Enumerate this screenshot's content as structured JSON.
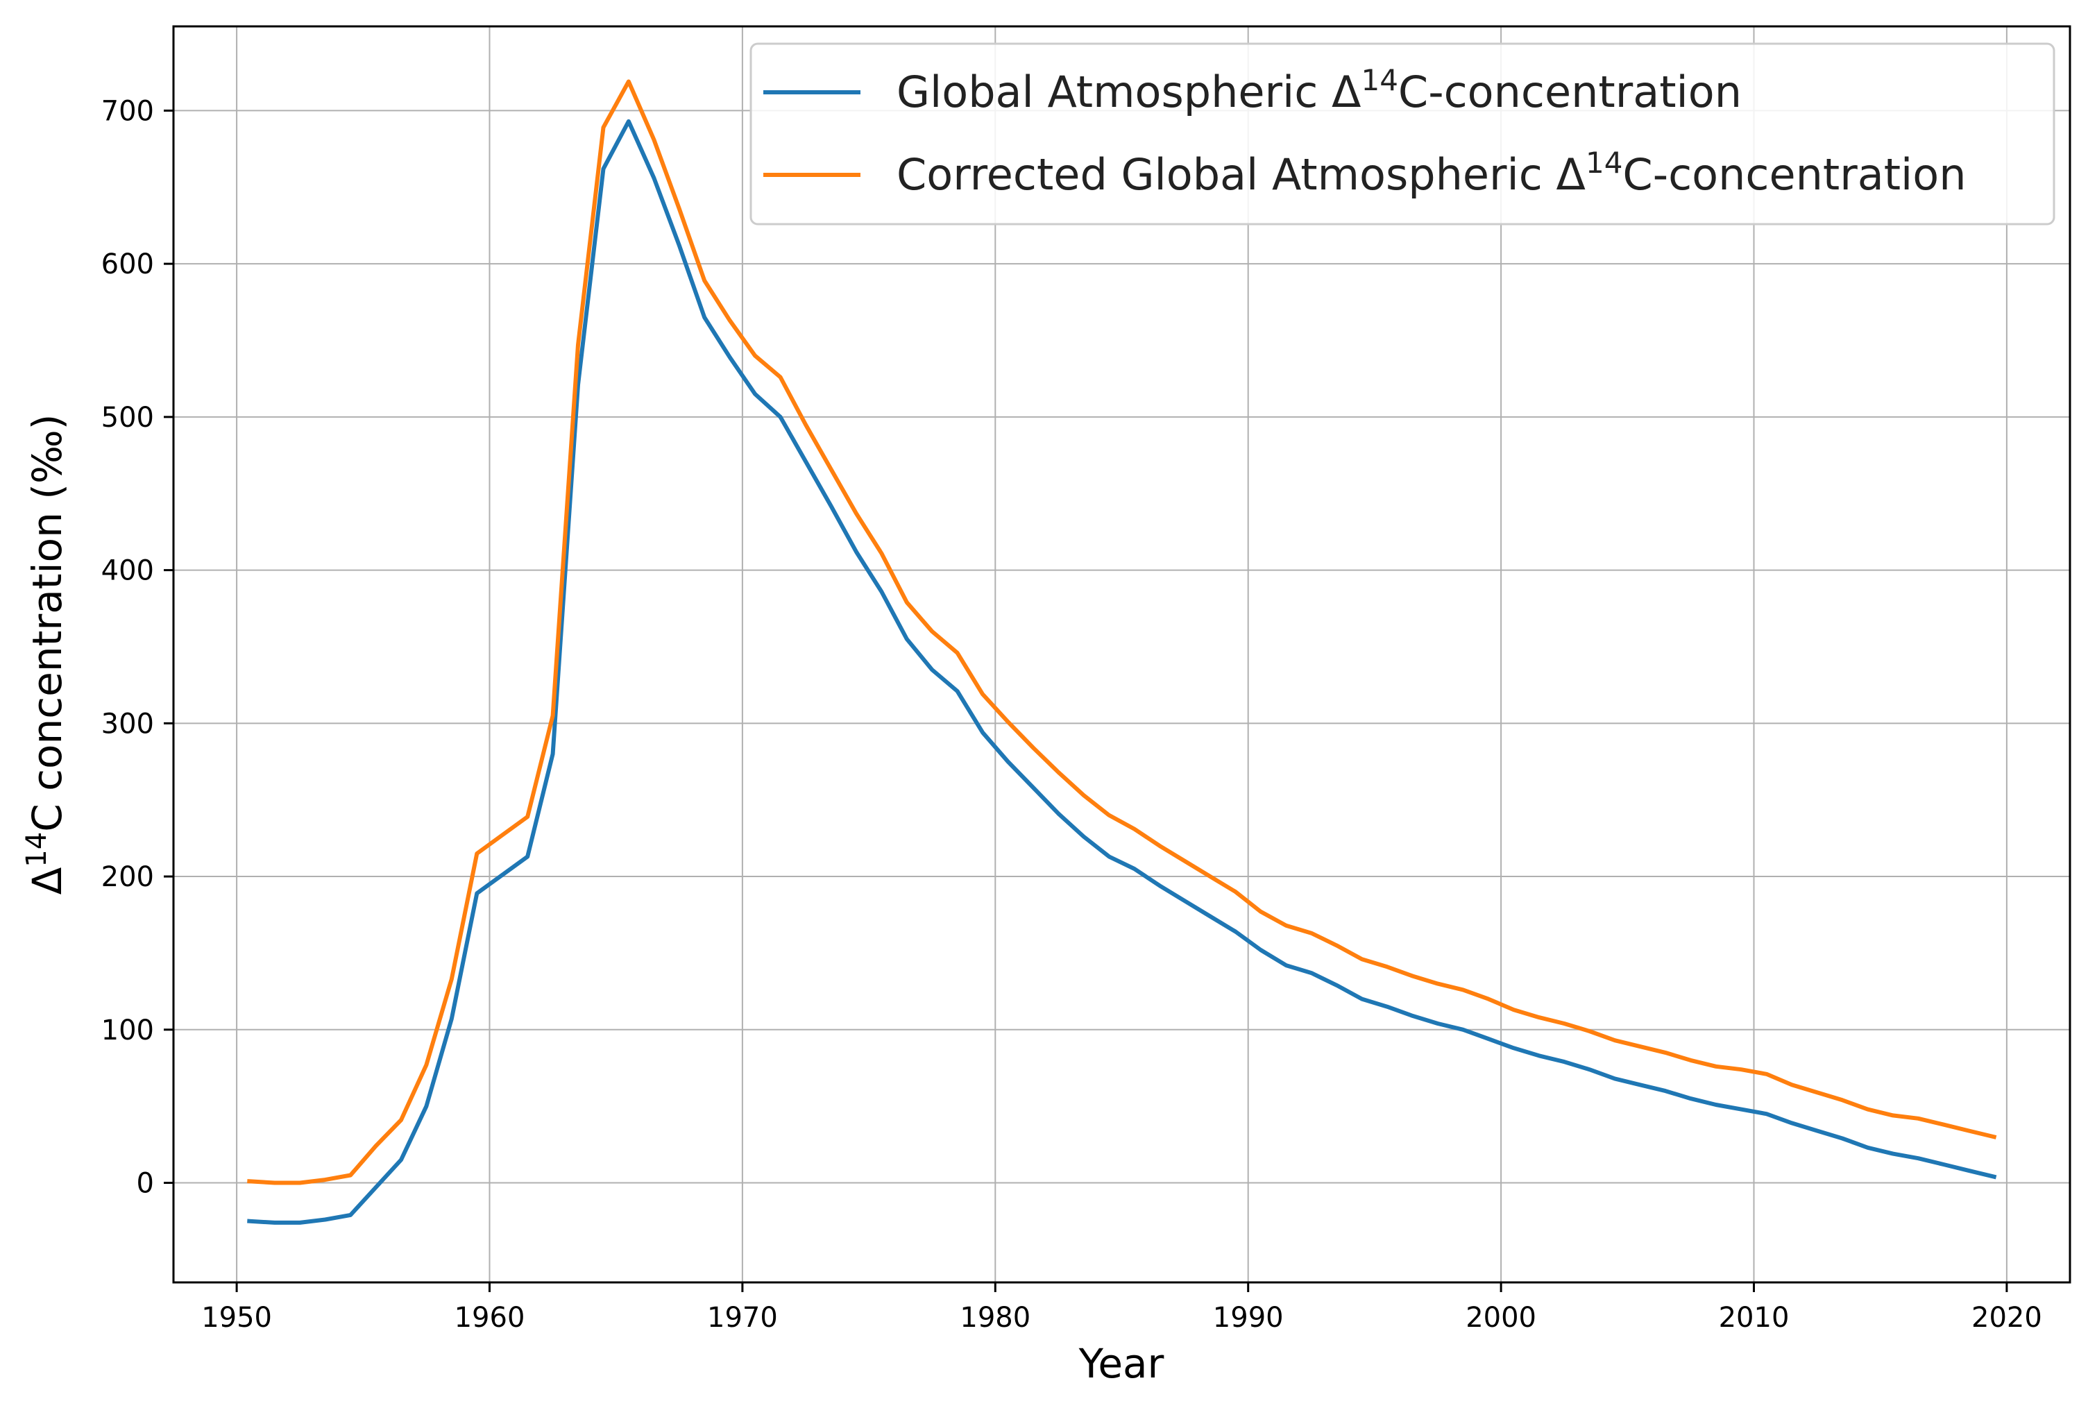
{
  "chart_data": {
    "type": "line",
    "title": "",
    "xlabel": "Year",
    "ylabel": {
      "prefix": "Δ",
      "sup": "14",
      "suffix": "C concentration (‰)"
    },
    "xlim": [
      1947.5,
      2022.5
    ],
    "ylim": [
      -65,
      755
    ],
    "xticks": [
      1950,
      1960,
      1970,
      1980,
      1990,
      2000,
      2010,
      2020
    ],
    "yticks": [
      0,
      100,
      200,
      300,
      400,
      500,
      600,
      700
    ],
    "grid": true,
    "legend": {
      "position": "top-right",
      "entries": [
        {
          "prefix": "Global Atmospheric Δ",
          "sup": "14",
          "suffix": "C-concentration",
          "color": "#1f77b4"
        },
        {
          "prefix": "Corrected Global Atmospheric Δ",
          "sup": "14",
          "suffix": "C-concentration",
          "color": "#ff7f0e"
        }
      ]
    },
    "x": [
      1950.5,
      1951.5,
      1952.5,
      1953.5,
      1954.5,
      1955.5,
      1956.5,
      1957.5,
      1958.5,
      1959.5,
      1960.5,
      1961.5,
      1962.5,
      1963.5,
      1964.5,
      1965.5,
      1966.5,
      1967.5,
      1968.5,
      1969.5,
      1970.5,
      1971.5,
      1972.5,
      1973.5,
      1974.5,
      1975.5,
      1976.5,
      1977.5,
      1978.5,
      1979.5,
      1980.5,
      1981.5,
      1982.5,
      1983.5,
      1984.5,
      1985.5,
      1986.5,
      1987.5,
      1988.5,
      1989.5,
      1990.5,
      1991.5,
      1992.5,
      1993.5,
      1994.5,
      1995.5,
      1996.5,
      1997.5,
      1998.5,
      1999.5,
      2000.5,
      2001.5,
      2002.5,
      2003.5,
      2004.5,
      2005.5,
      2006.5,
      2007.5,
      2008.5,
      2009.5,
      2010.5,
      2011.5,
      2012.5,
      2013.5,
      2014.5,
      2015.5,
      2016.5,
      2017.5,
      2018.5,
      2019.5
    ],
    "series": [
      {
        "name": "Global Atmospheric Δ14C-concentration",
        "color": "#1f77b4",
        "values": [
          -25,
          -26,
          -26,
          -24,
          -21,
          -3,
          15,
          50,
          107,
          189,
          201,
          213,
          280,
          521,
          662,
          693,
          656,
          612,
          565,
          539,
          515,
          500,
          471,
          442,
          412,
          386,
          355,
          335,
          321,
          294,
          275,
          258,
          241,
          226,
          213,
          205,
          194,
          184,
          174,
          164,
          152,
          142,
          137,
          129,
          120,
          115,
          109,
          104,
          100,
          94,
          88,
          83,
          79,
          74,
          68,
          64,
          60,
          55,
          51,
          48,
          45,
          39,
          34,
          29,
          23,
          19,
          16,
          12,
          8,
          4
        ]
      },
      {
        "name": "Corrected Global Atmospheric Δ14C-concentration",
        "color": "#ff7f0e",
        "values": [
          1,
          0,
          0,
          2,
          5,
          24,
          41,
          77,
          133,
          215,
          227,
          239,
          305,
          547,
          689,
          719,
          681,
          636,
          589,
          563,
          540,
          526,
          495,
          466,
          437,
          411,
          379,
          360,
          346,
          319,
          301,
          284,
          268,
          253,
          240,
          231,
          220,
          210,
          200,
          190,
          177,
          168,
          163,
          155,
          146,
          141,
          135,
          130,
          126,
          120,
          113,
          108,
          104,
          99,
          93,
          89,
          85,
          80,
          76,
          74,
          71,
          64,
          59,
          54,
          48,
          44,
          42,
          38,
          34,
          30
        ]
      }
    ]
  }
}
